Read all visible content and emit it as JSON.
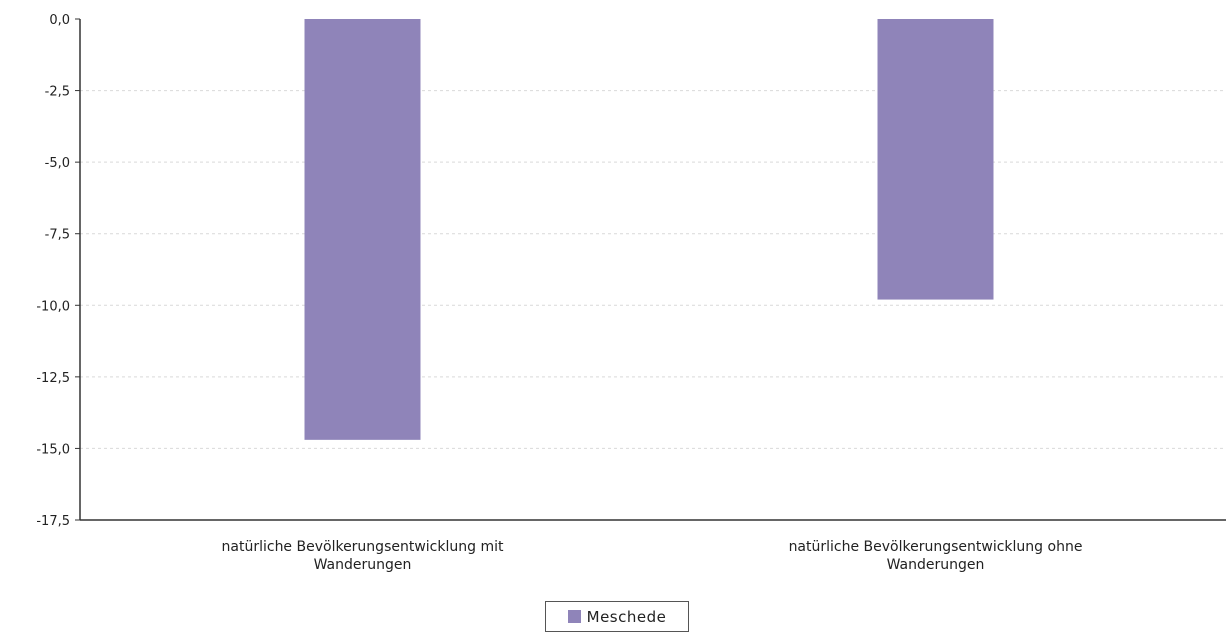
{
  "chart_data": {
    "type": "bar",
    "categories": [
      [
        "natürliche Bevölkerungsentwicklung mit",
        "Wanderungen"
      ],
      [
        "natürliche Bevölkerungsentwicklung ohne",
        "Wanderungen"
      ]
    ],
    "series": [
      {
        "name": "Meschede",
        "color": "#8f84b9",
        "values": [
          -14.7,
          -9.8
        ]
      }
    ],
    "ylim": [
      -17.5,
      0
    ],
    "yticks": [
      "0,0",
      "-2,5",
      "-5,0",
      "-7,5",
      "-10,0",
      "-12,5",
      "-15,0",
      "-17,5"
    ],
    "ytick_values": [
      0,
      -2.5,
      -5,
      -7.5,
      -10,
      -12.5,
      -15,
      -17.5
    ],
    "grid": true,
    "legend_position": "bottom"
  },
  "legend": {
    "label": "Meschede",
    "color": "#8f84b9"
  }
}
